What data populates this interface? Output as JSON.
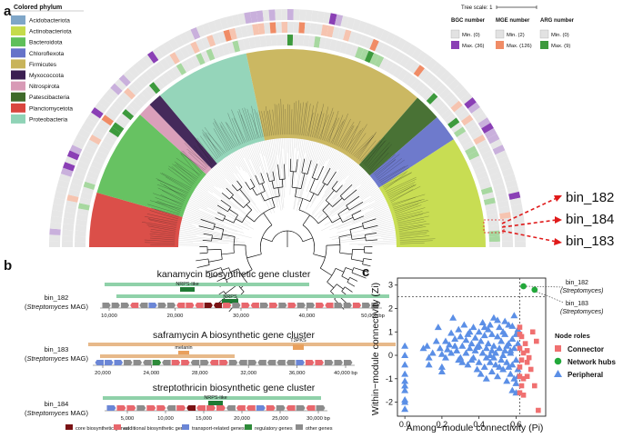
{
  "panel_a": {
    "letter": "a",
    "legend_title": "Colored phylum",
    "phyla": [
      {
        "name": "Acidobacteriota",
        "color": "#7fa6c8"
      },
      {
        "name": "Actinobacteriota",
        "color": "#c5db4a"
      },
      {
        "name": "Bacteroidota",
        "color": "#5fbf5a"
      },
      {
        "name": "Chloroflexota",
        "color": "#6673c9"
      },
      {
        "name": "Firmicutes",
        "color": "#c8b45a"
      },
      {
        "name": "Myxococcota",
        "color": "#3b1f52"
      },
      {
        "name": "Nitrospirota",
        "color": "#d89ab6"
      },
      {
        "name": "Patescibacteria",
        "color": "#3f6a2a"
      },
      {
        "name": "Planctomycetota",
        "color": "#d9463f"
      },
      {
        "name": "Proteobacteria",
        "color": "#8fd3b6"
      }
    ],
    "tree_scale": "Tree scale: 1",
    "heat_legends": [
      {
        "title": "BGC number",
        "min": "Min. (0)",
        "max": "Max. (36)",
        "min_color": "#e2e2e2",
        "max_color": "#8a3fb5"
      },
      {
        "title": "MGE number",
        "min": "Min. (2)",
        "max": "Max. (126)",
        "min_color": "#e2e2e2",
        "max_color": "#f08c66"
      },
      {
        "title": "ARG number",
        "min": "Min. (0)",
        "max": "Max. (9)",
        "min_color": "#e2e2e2",
        "max_color": "#3d9a3d"
      }
    ],
    "callouts": [
      "bin_182",
      "bin_184",
      "bin_183"
    ]
  },
  "panel_b": {
    "letter": "b",
    "clusters": [
      {
        "title": "kanamycin biosynthetic gene cluster",
        "bin": "bin_182",
        "organism": "Streptomyces",
        "mag": "MAG)",
        "tags": [
          "NRPS-like",
          "NRPS"
        ],
        "ticks": [
          "10,000",
          "20,000",
          "30,000",
          "40,000",
          "50,000 bp"
        ]
      },
      {
        "title": "saframycin A biosynthetic gene cluster",
        "bin": "bin_183",
        "organism": "Streptomyces",
        "mag": "MAG)",
        "tags": [
          "T3PKS",
          "melanin"
        ],
        "ticks": [
          "20,000",
          "24,000",
          "28,000",
          "32,000",
          "36,000",
          "40,000 bp"
        ]
      },
      {
        "title": "streptothricin biosynthetic gene cluster",
        "bin": "bin_184",
        "organism": "Streptomyces",
        "mag": "MAG)",
        "tags": [
          "NRPS-like"
        ],
        "ticks": [
          "5,000",
          "10,000",
          "15,000",
          "20,000",
          "25,000",
          "30,000 bp"
        ]
      }
    ],
    "gene_legend": [
      {
        "label": "core biosynthetic genes",
        "color": "#7a1214"
      },
      {
        "label": "additional biosynthetic genes",
        "color": "#e8676d"
      },
      {
        "label": "transport-related genes",
        "color": "#6b86d6"
      },
      {
        "label": "regulatory genes",
        "color": "#2e8b3a"
      },
      {
        "label": "other genes",
        "color": "#8c8c8c"
      }
    ]
  },
  "panel_c": {
    "letter": "c",
    "chart_data": {
      "type": "scatter",
      "xlabel": "Among−module connectivity (Pi)",
      "ylabel": "Within−module connectivity (Zi)",
      "xlim": [
        -0.04,
        0.76
      ],
      "ylim": [
        -2.6,
        3.3
      ],
      "xticks": [
        0.0,
        0.2,
        0.4,
        0.6
      ],
      "yticks": [
        -2,
        -1,
        0,
        1,
        2,
        3
      ],
      "thresholds": {
        "x": 0.62,
        "y": 2.5
      },
      "legend_title": "Node roles",
      "roles": [
        {
          "name": "Connector",
          "color": "#f07070",
          "marker": "square"
        },
        {
          "name": "Network hubs",
          "color": "#22a83a",
          "marker": "circle"
        },
        {
          "name": "Peripheral",
          "color": "#5b8fe6",
          "marker": "triangle"
        }
      ],
      "annotations": [
        {
          "label": "bin_182",
          "organism": "Streptomyces",
          "x": 0.64,
          "y": 2.95
        },
        {
          "label": "bin_183",
          "organism": "Streptomyces",
          "x": 0.7,
          "y": 2.8
        }
      ],
      "hubs": [
        [
          0.64,
          2.95
        ],
        [
          0.7,
          2.8
        ]
      ],
      "connectors": [
        [
          0.62,
          1.2
        ],
        [
          0.63,
          0.8
        ],
        [
          0.62,
          0.3
        ],
        [
          0.64,
          0.1
        ],
        [
          0.63,
          -0.2
        ],
        [
          0.62,
          -0.5
        ],
        [
          0.66,
          -0.3
        ],
        [
          0.65,
          0.5
        ],
        [
          0.62,
          -0.9
        ],
        [
          0.63,
          -1.3
        ],
        [
          0.64,
          -1.7
        ],
        [
          0.67,
          -0.1
        ],
        [
          0.68,
          -0.6
        ],
        [
          0.62,
          -1.6
        ],
        [
          0.66,
          -0.9
        ],
        [
          0.7,
          -1.3
        ],
        [
          0.72,
          -2.35
        ],
        [
          0.69,
          1.0
        ],
        [
          0.71,
          0.6
        ],
        [
          0.62,
          0.9
        ],
        [
          0.64,
          -1.0
        ],
        [
          0.66,
          0.2
        ]
      ],
      "peripherals": [
        [
          0.0,
          -2.3
        ],
        [
          0.0,
          -1.9
        ],
        [
          0.0,
          -1.5
        ],
        [
          0.0,
          -1.1
        ],
        [
          0.0,
          -0.8
        ],
        [
          0.0,
          -0.4
        ],
        [
          0.0,
          0.0
        ],
        [
          0.0,
          0.4
        ],
        [
          0.0,
          -1.3
        ],
        [
          0.0,
          -2.0
        ],
        [
          0.1,
          0.3
        ],
        [
          0.12,
          0.4
        ],
        [
          0.13,
          -0.4
        ],
        [
          0.13,
          -0.1
        ],
        [
          0.15,
          0.1
        ],
        [
          0.17,
          0.6
        ],
        [
          0.18,
          1.2
        ],
        [
          0.19,
          0.3
        ],
        [
          0.2,
          0.05
        ],
        [
          0.2,
          -0.5
        ],
        [
          0.2,
          -0.7
        ],
        [
          0.22,
          0.6
        ],
        [
          0.23,
          0.25
        ],
        [
          0.24,
          0.45
        ],
        [
          0.25,
          0.95
        ],
        [
          0.26,
          1.6
        ],
        [
          0.27,
          0.4
        ],
        [
          0.27,
          0.7
        ],
        [
          0.28,
          0.2
        ],
        [
          0.29,
          1.1
        ],
        [
          0.3,
          0.8
        ],
        [
          0.3,
          -0.1
        ],
        [
          0.31,
          0.4
        ],
        [
          0.32,
          1.3
        ],
        [
          0.33,
          0.65
        ],
        [
          0.34,
          0.9
        ],
        [
          0.34,
          -0.4
        ],
        [
          0.35,
          0.3
        ],
        [
          0.35,
          1.0
        ],
        [
          0.36,
          0.5
        ],
        [
          0.36,
          -0.2
        ],
        [
          0.37,
          1.2
        ],
        [
          0.38,
          0.75
        ],
        [
          0.38,
          0.2
        ],
        [
          0.39,
          -0.6
        ],
        [
          0.4,
          1.0
        ],
        [
          0.4,
          0.4
        ],
        [
          0.4,
          -0.3
        ],
        [
          0.41,
          0.6
        ],
        [
          0.41,
          -0.8
        ],
        [
          0.42,
          1.4
        ],
        [
          0.42,
          0.1
        ],
        [
          0.43,
          0.85
        ],
        [
          0.43,
          -0.5
        ],
        [
          0.44,
          0.3
        ],
        [
          0.44,
          -1.0
        ],
        [
          0.45,
          1.1
        ],
        [
          0.45,
          0.5
        ],
        [
          0.46,
          0.0
        ],
        [
          0.46,
          -0.3
        ],
        [
          0.47,
          0.9
        ],
        [
          0.47,
          -0.7
        ],
        [
          0.48,
          0.4
        ],
        [
          0.48,
          1.6
        ],
        [
          0.49,
          0.1
        ],
        [
          0.49,
          -0.4
        ],
        [
          0.5,
          0.8
        ],
        [
          0.5,
          -0.9
        ],
        [
          0.51,
          0.3
        ],
        [
          0.51,
          1.2
        ],
        [
          0.52,
          -0.2
        ],
        [
          0.52,
          0.6
        ],
        [
          0.53,
          1.0
        ],
        [
          0.53,
          -0.6
        ],
        [
          0.54,
          0.2
        ],
        [
          0.54,
          0.9
        ],
        [
          0.55,
          -0.3
        ],
        [
          0.55,
          -1.1
        ],
        [
          0.56,
          0.5
        ],
        [
          0.56,
          1.3
        ],
        [
          0.57,
          0.1
        ],
        [
          0.57,
          -0.8
        ],
        [
          0.58,
          0.7
        ],
        [
          0.58,
          -0.4
        ],
        [
          0.59,
          1.7
        ],
        [
          0.59,
          0.3
        ],
        [
          0.6,
          -0.2
        ],
        [
          0.6,
          0.9
        ],
        [
          0.6,
          -1.2
        ],
        [
          0.61,
          0.5
        ],
        [
          0.61,
          -0.6
        ],
        [
          0.61,
          1.1
        ],
        [
          0.6,
          -1.6
        ],
        [
          0.59,
          -1.0
        ],
        [
          0.58,
          -1.5
        ],
        [
          0.57,
          0.2
        ],
        [
          0.55,
          0.4
        ],
        [
          0.53,
          0.0
        ],
        [
          0.51,
          -0.5
        ],
        [
          0.47,
          0.2
        ],
        [
          0.44,
          -0.1
        ],
        [
          0.39,
          0.35
        ],
        [
          0.37,
          -0.1
        ],
        [
          0.33,
          0.1
        ],
        [
          0.31,
          -0.3
        ],
        [
          0.29,
          -0.2
        ],
        [
          0.25,
          0.1
        ],
        [
          0.22,
          -0.1
        ],
        [
          0.46,
          1.3
        ],
        [
          0.5,
          1.5
        ],
        [
          0.54,
          1.45
        ],
        [
          0.43,
          1.2
        ],
        [
          0.58,
          1.25
        ],
        [
          0.61,
          -0.9
        ],
        [
          0.56,
          -0.5
        ],
        [
          0.48,
          -0.1
        ]
      ]
    }
  }
}
